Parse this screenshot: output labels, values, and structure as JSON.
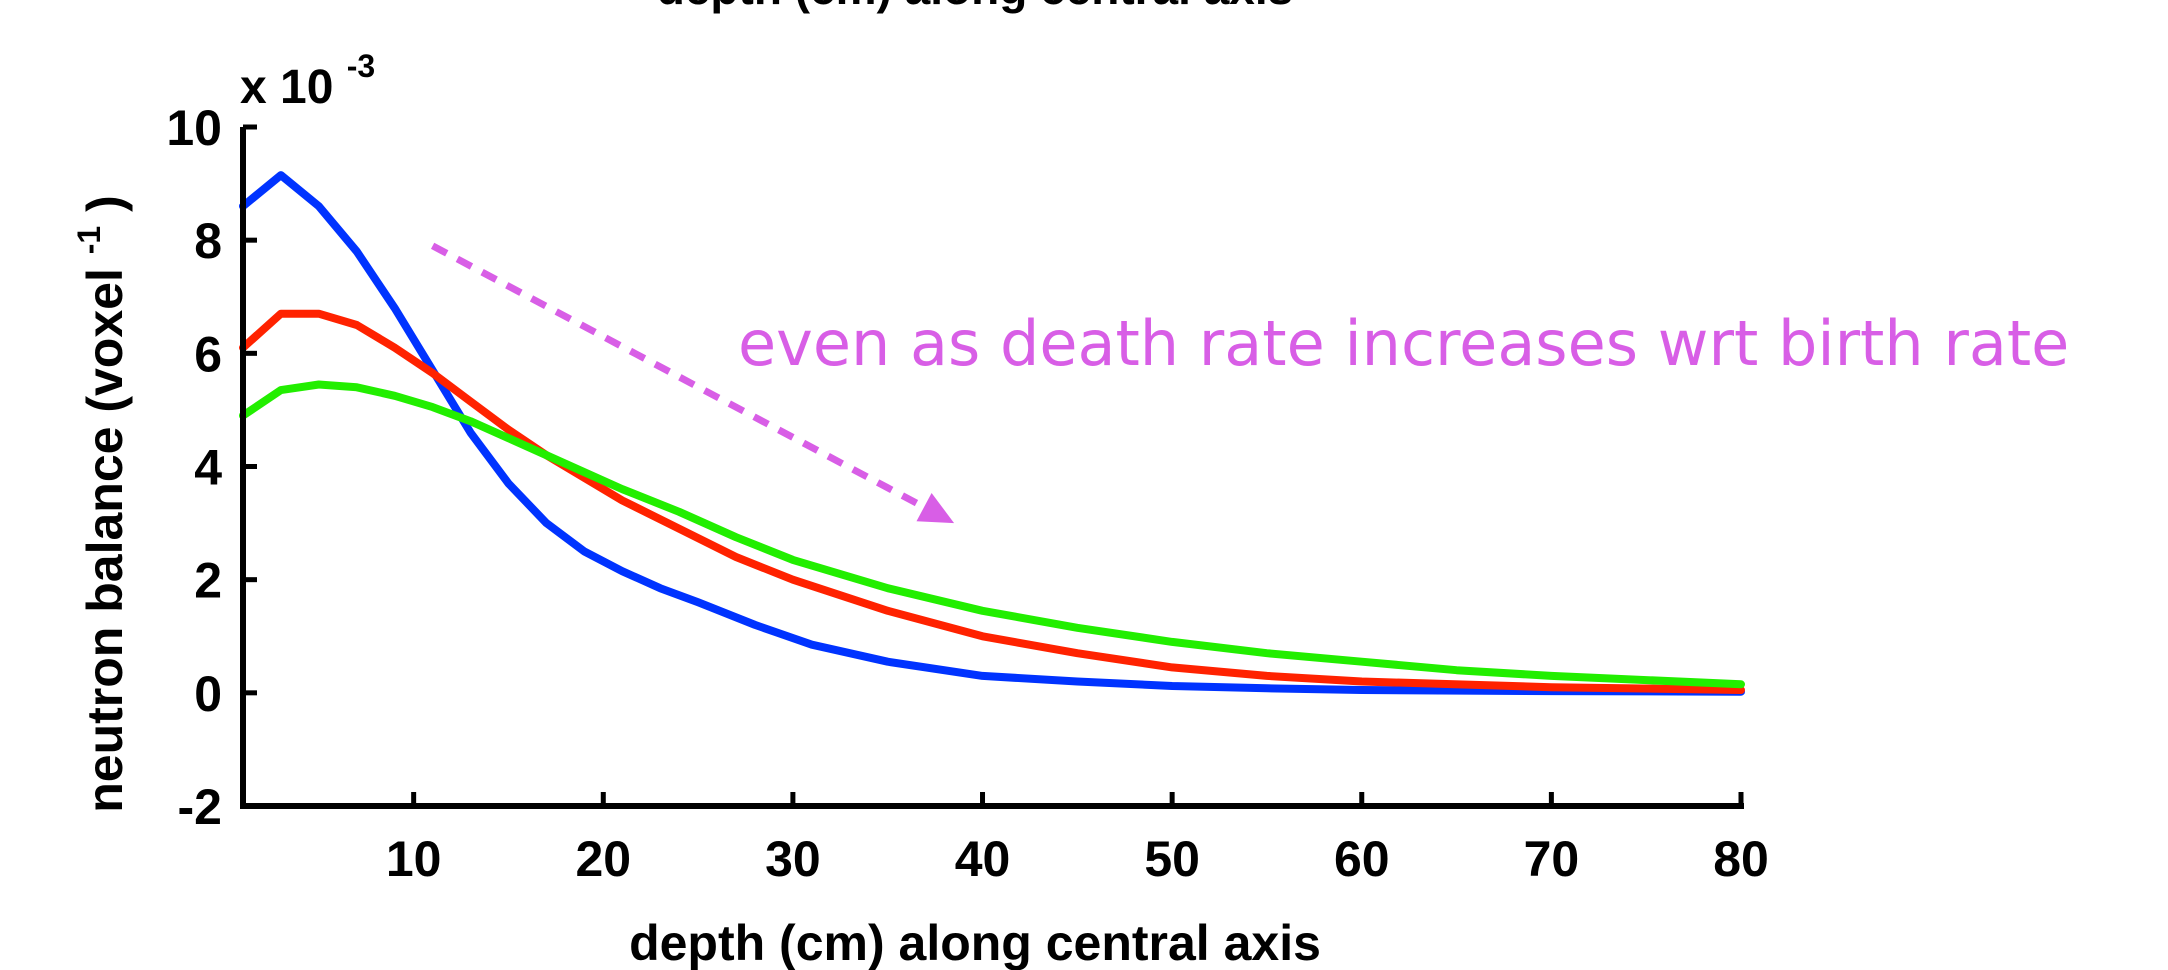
{
  "chart_data": {
    "type": "line",
    "title": "depth (cm) along central axis",
    "xlabel": "depth (cm) along central axis",
    "ylabel": "neutron balance (voxel",
    "ylabel_sup": "-1",
    "ylabel_close": ")",
    "y_multiplier": "x 10",
    "y_multiplier_exp": "-3",
    "xlim": [
      1,
      80
    ],
    "ylim": [
      -2,
      10
    ],
    "xticks": [
      10,
      20,
      30,
      40,
      50,
      60,
      70,
      80
    ],
    "yticks": [
      -2,
      0,
      2,
      4,
      6,
      8,
      10
    ],
    "grid": false,
    "annotation": {
      "text": "even as death rate increases wrt birth rate",
      "color": "#d85ee6",
      "arrow_from": [
        11,
        7.9
      ],
      "arrow_to": [
        38.5,
        3.0
      ]
    },
    "series": [
      {
        "color": "#0033ff",
        "x": [
          1,
          3,
          5,
          7,
          9,
          11,
          13,
          15,
          17,
          19,
          21,
          23,
          25,
          28,
          31,
          35,
          40,
          45,
          50,
          55,
          60,
          70,
          80
        ],
        "y": [
          8.6,
          9.15,
          8.6,
          7.8,
          6.8,
          5.7,
          4.6,
          3.7,
          3.0,
          2.5,
          2.15,
          1.85,
          1.6,
          1.2,
          0.85,
          0.55,
          0.3,
          0.2,
          0.12,
          0.08,
          0.05,
          0.03,
          0.02
        ]
      },
      {
        "color": "#ff2200",
        "x": [
          1,
          3,
          5,
          7,
          9,
          11,
          13,
          15,
          17,
          19,
          21,
          24,
          27,
          30,
          35,
          40,
          45,
          50,
          55,
          60,
          70,
          80
        ],
        "y": [
          6.1,
          6.7,
          6.7,
          6.5,
          6.1,
          5.65,
          5.15,
          4.65,
          4.2,
          3.8,
          3.4,
          2.9,
          2.4,
          2.0,
          1.45,
          1.0,
          0.7,
          0.45,
          0.3,
          0.2,
          0.1,
          0.05
        ]
      },
      {
        "color": "#22ee00",
        "x": [
          1,
          3,
          5,
          7,
          9,
          11,
          13,
          15,
          17,
          19,
          21,
          24,
          27,
          30,
          35,
          40,
          45,
          50,
          55,
          60,
          65,
          70,
          80
        ],
        "y": [
          4.9,
          5.35,
          5.45,
          5.4,
          5.25,
          5.05,
          4.8,
          4.5,
          4.2,
          3.9,
          3.6,
          3.2,
          2.75,
          2.35,
          1.85,
          1.45,
          1.15,
          0.9,
          0.7,
          0.55,
          0.4,
          0.3,
          0.15
        ]
      }
    ]
  }
}
